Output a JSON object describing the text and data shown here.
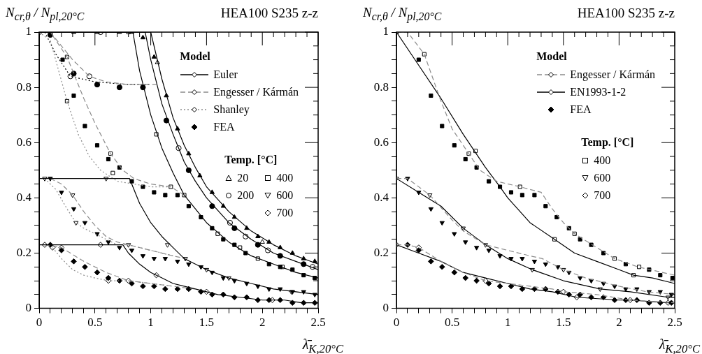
{
  "chart_data": [
    {
      "type": "line",
      "title": "HEA100 S235 z-z",
      "ylabel": "N$_{cr,θ}$ / N$_{pl,20°C}$",
      "xlabel": "λ̄$_{K,20°C}$",
      "legend_title": "Model",
      "annotations": [
        "Temp. [°C]"
      ],
      "legend": "top right",
      "grid": false,
      "xlim": [
        0,
        2.5
      ],
      "ylim": [
        0,
        1
      ],
      "xticks": [
        0,
        {
          "value": 0.1,
          "label": null
        },
        {
          "value": 0.2,
          "label": null
        },
        {
          "value": 0.3,
          "label": null
        },
        {
          "value": 0.4,
          "label": null
        },
        0.5,
        {
          "value": 0.6,
          "label": null
        },
        {
          "value": 0.7,
          "label": null
        },
        {
          "value": 0.8,
          "label": null
        },
        {
          "value": 0.9,
          "label": null
        },
        1,
        {
          "value": 1.1,
          "label": null
        },
        {
          "value": 1.2,
          "label": null
        },
        {
          "value": 1.3,
          "label": null
        },
        {
          "value": 1.4,
          "label": null
        },
        1.5,
        {
          "value": 1.6,
          "label": null
        },
        {
          "value": 1.7,
          "label": null
        },
        {
          "value": 1.8,
          "label": null
        },
        {
          "value": 1.9,
          "label": null
        },
        2,
        {
          "value": 2.1,
          "label": null
        },
        {
          "value": 2.2,
          "label": null
        },
        {
          "value": 2.3,
          "label": null
        },
        {
          "value": 2.4,
          "label": null
        },
        2.5
      ],
      "yticks": [
        0,
        {
          "value": 0.05,
          "label": null
        },
        {
          "value": 0.1,
          "label": null
        },
        {
          "value": 0.15,
          "label": null
        },
        0.2,
        {
          "value": 0.25,
          "label": null
        },
        {
          "value": 0.3,
          "label": null
        },
        {
          "value": 0.35,
          "label": null
        },
        0.4,
        {
          "value": 0.45,
          "label": null
        },
        {
          "value": 0.5,
          "label": null
        },
        {
          "value": 0.55,
          "label": null
        },
        0.6,
        {
          "value": 0.65,
          "label": null
        },
        {
          "value": 0.7,
          "label": null
        },
        {
          "value": 0.75,
          "label": null
        },
        0.8,
        {
          "value": 0.85,
          "label": null
        },
        {
          "value": 0.9,
          "label": null
        },
        {
          "value": 0.95,
          "label": null
        },
        1
      ],
      "series": [
        {
          "name": "Euler",
          "type": "line",
          "color": "#000000",
          "line_style": "solid",
          "x": [
            0,
            1.0,
            1.1,
            1.2,
            1.3,
            1.4,
            1.5,
            1.7,
            1.9,
            2.1,
            2.3,
            2.5
          ],
          "values": [
            1,
            1,
            0.83,
            0.69,
            0.59,
            0.51,
            0.44,
            0.35,
            0.28,
            0.23,
            0.19,
            0.16
          ]
        },
        {
          "type": "line",
          "color": "#000000",
          "line_style": "solid",
          "x": [
            0,
            0.95,
            1.0,
            1.1,
            1.2,
            1.3,
            1.4,
            1.5,
            1.7,
            1.9,
            2.1,
            2.3,
            2.5
          ],
          "values": [
            1,
            1,
            0.9,
            0.74,
            0.63,
            0.53,
            0.46,
            0.4,
            0.31,
            0.25,
            0.2,
            0.17,
            0.14
          ]
        },
        {
          "type": "line",
          "color": "#000000",
          "line_style": "solid",
          "x": [
            0,
            0.84,
            0.9,
            1.0,
            1.1,
            1.2,
            1.3,
            1.4,
            1.5,
            1.7,
            1.9,
            2.1,
            2.3,
            2.5
          ],
          "values": [
            1,
            1,
            0.86,
            0.7,
            0.58,
            0.49,
            0.41,
            0.36,
            0.31,
            0.24,
            0.19,
            0.16,
            0.13,
            0.11
          ]
        },
        {
          "type": "line",
          "color": "#000000",
          "line_style": "solid",
          "x": [
            0,
            0.81,
            0.9,
            1.0,
            1.1,
            1.2,
            1.3,
            1.4,
            1.5,
            1.7,
            1.9,
            2.1,
            2.3,
            2.5
          ],
          "values": [
            0.47,
            0.47,
            0.38,
            0.31,
            0.26,
            0.22,
            0.18,
            0.16,
            0.14,
            0.11,
            0.09,
            0.07,
            0.06,
            0.05
          ]
        },
        {
          "type": "line",
          "color": "#000000",
          "line_style": "solid",
          "x": [
            0,
            0.75,
            0.8,
            0.9,
            1.0,
            1.1,
            1.2,
            1.4,
            1.6,
            1.8,
            2.0,
            2.2,
            2.35,
            2.5
          ],
          "values": [
            0.23,
            0.23,
            0.2,
            0.16,
            0.13,
            0.11,
            0.09,
            0.07,
            0.05,
            0.04,
            0.03,
            0.03,
            0.02,
            0.02
          ]
        },
        {
          "name": "Engesser / Kármán",
          "type": "line",
          "color": "#8c8c8c",
          "line_style": "dashed",
          "x": [
            0,
            0.1,
            0.25,
            0.4,
            0.5,
            0.64,
            0.75,
            0.85,
            1.0,
            1.18,
            1.3
          ],
          "values": [
            1,
            1,
            0.91,
            0.76,
            0.67,
            0.56,
            0.5,
            0.47,
            0.45,
            0.44,
            0.41
          ]
        },
        {
          "type": "line",
          "color": "#8c8c8c",
          "line_style": "dashed",
          "x": [
            0.1,
            0.2,
            0.3,
            0.45,
            0.6,
            0.8,
            1.05
          ],
          "values": [
            1,
            0.95,
            0.9,
            0.84,
            0.82,
            0.81,
            0.81
          ]
        },
        {
          "type": "line",
          "color": "#8c8c8c",
          "line_style": "dashed",
          "x": [
            0.1,
            0.2,
            0.3,
            0.4,
            0.5,
            0.6,
            0.7,
            0.8,
            1.0,
            1.2,
            1.31
          ],
          "values": [
            0.47,
            0.45,
            0.41,
            0.35,
            0.3,
            0.26,
            0.24,
            0.23,
            0.21,
            0.19,
            0.18
          ]
        },
        {
          "type": "line",
          "color": "#8c8c8c",
          "line_style": "dashed",
          "x": [
            0.05,
            0.2,
            0.4,
            0.6,
            0.8,
            1.0,
            1.2,
            1.4
          ],
          "values": [
            0.23,
            0.22,
            0.17,
            0.13,
            0.1,
            0.09,
            0.08,
            0.07
          ]
        },
        {
          "name": "Shanley",
          "type": "line",
          "color": "#8c8c8c",
          "line_style": "dotted",
          "x": [
            0,
            0.1,
            0.25,
            0.35,
            0.45,
            0.55,
            0.7,
            0.85,
            1.0,
            1.18
          ],
          "values": [
            1,
            0.97,
            0.75,
            0.63,
            0.55,
            0.5,
            0.46,
            0.45,
            0.44,
            0.44
          ]
        },
        {
          "type": "line",
          "color": "#000000",
          "line_style": "dotted",
          "x": [
            0.05,
            0.15,
            0.28,
            0.5,
            0.8,
            1.0
          ],
          "values": [
            1,
            0.92,
            0.84,
            0.82,
            0.81,
            0.81
          ]
        },
        {
          "type": "line",
          "color": "#8c8c8c",
          "line_style": "dotted",
          "x": [
            0.05,
            0.15,
            0.25,
            0.33,
            0.4,
            0.5,
            0.6,
            0.7,
            0.8,
            1.0,
            1.2
          ],
          "values": [
            0.47,
            0.43,
            0.36,
            0.31,
            0.29,
            0.27,
            0.25,
            0.23,
            0.23,
            0.21,
            0.19
          ]
        },
        {
          "type": "line",
          "color": "#8c8c8c",
          "line_style": "dotted",
          "x": [
            0.12,
            0.2,
            0.3,
            0.4,
            0.5,
            0.62,
            0.8,
            1.0,
            1.2
          ],
          "values": [
            0.22,
            0.18,
            0.14,
            0.12,
            0.11,
            0.1,
            0.1,
            0.09,
            0.08
          ]
        },
        {
          "type": "scatter",
          "color": "#000000",
          "marker": "triangle",
          "x": [
            0.31,
            0.52,
            0.72,
            0.83,
            0.93,
            1.03,
            1.14,
            1.24,
            1.34,
            1.44,
            1.55,
            1.65,
            1.75,
            1.86,
            1.96,
            2.06,
            2.16,
            2.27,
            2.37,
            2.47
          ],
          "values": [
            1,
            1,
            1,
            1,
            0.98,
            0.91,
            0.77,
            0.65,
            0.56,
            0.48,
            0.42,
            0.37,
            0.33,
            0.29,
            0.26,
            0.24,
            0.22,
            0.2,
            0.18,
            0.17
          ]
        },
        {
          "type": "scatter",
          "color": "#000000",
          "marker": "circle",
          "x": [
            0.1,
            0.31,
            0.52,
            0.72,
            0.93,
            1.14,
            1.34,
            1.55,
            1.75,
            1.96,
            2.16,
            2.37
          ],
          "values": [
            0.99,
            0.85,
            0.81,
            0.8,
            0.8,
            0.68,
            0.5,
            0.37,
            0.29,
            0.23,
            0.19,
            0.16
          ]
        },
        {
          "type": "scatter",
          "color": "#000000",
          "marker": "square",
          "x": [
            0.21,
            0.31,
            0.41,
            0.52,
            0.62,
            0.72,
            0.83,
            0.93,
            1.03,
            1.13,
            1.24,
            1.34,
            1.45,
            1.55,
            1.65,
            1.75,
            1.85,
            2.06,
            2.16,
            2.27,
            2.37,
            2.47
          ],
          "values": [
            0.9,
            0.77,
            0.66,
            0.59,
            0.54,
            0.51,
            0.46,
            0.44,
            0.42,
            0.41,
            0.41,
            0.37,
            0.33,
            0.29,
            0.25,
            0.23,
            0.2,
            0.16,
            0.15,
            0.14,
            0.12,
            0.11
          ]
        },
        {
          "type": "scatter",
          "color": "#000000",
          "marker": "triangle-down",
          "x": [
            0.1,
            0.2,
            0.31,
            0.41,
            0.52,
            0.62,
            0.72,
            0.83,
            0.93,
            1.03,
            1.13,
            1.24,
            1.34,
            1.45,
            1.55,
            1.65,
            1.75,
            1.86,
            1.96,
            2.06,
            2.16,
            2.27,
            2.37,
            2.47
          ],
          "values": [
            0.47,
            0.42,
            0.36,
            0.31,
            0.27,
            0.24,
            0.22,
            0.21,
            0.19,
            0.18,
            0.18,
            0.17,
            0.16,
            0.15,
            0.13,
            0.11,
            0.1,
            0.09,
            0.08,
            0.07,
            0.07,
            0.06,
            0.06,
            0.05
          ]
        },
        {
          "name": "FEA",
          "type": "scatter",
          "color": "#000000",
          "marker": "diamond",
          "x": [
            0.1,
            0.2,
            0.31,
            0.41,
            0.52,
            0.62,
            0.72,
            0.83,
            0.93,
            1.03,
            1.13,
            1.24,
            1.34,
            1.45,
            1.55,
            1.65,
            1.75,
            1.86,
            1.96,
            2.06,
            2.16,
            2.27,
            2.37,
            2.47
          ],
          "values": [
            0.23,
            0.21,
            0.17,
            0.15,
            0.13,
            0.11,
            0.1,
            0.09,
            0.08,
            0.08,
            0.07,
            0.07,
            0.07,
            0.06,
            0.05,
            0.05,
            0.04,
            0.04,
            0.03,
            0.03,
            0.03,
            0.02,
            0.02,
            0.02
          ]
        },
        {
          "name": "20",
          "type": "scatter",
          "color": "#ffffff",
          "marker": "triangle",
          "x": [
            1.06,
            2.0
          ],
          "values": [
            0.89,
            0.24
          ]
        },
        {
          "name": "200",
          "type": "scatter",
          "color": "#ffffff",
          "marker": "circle",
          "x": [
            0,
            0.28,
            0.45,
            0.55,
            1.25,
            1.71,
            1.85,
            2.05,
            2.45
          ],
          "values": [
            1,
            0.84,
            0.84,
            1,
            0.58,
            0.31,
            0.26,
            0.21,
            0.15
          ]
        },
        {
          "name": "400",
          "type": "scatter",
          "color": "#ffffff",
          "marker": "square",
          "x": [
            0.8,
            0.25,
            0.25,
            0.64,
            0.66,
            1.05,
            1.18,
            1.3,
            1.6,
            1.8,
            1.96,
            2.18
          ],
          "values": [
            1,
            0.91,
            0.75,
            0.56,
            0.49,
            0.63,
            0.44,
            0.41,
            0.27,
            0.22,
            0.18,
            0.15
          ]
        },
        {
          "name": "600",
          "type": "scatter",
          "color": "#ffffff",
          "marker": "triangle-down",
          "x": [
            0.05,
            0.3,
            0.33,
            0.6,
            0.8,
            1.15,
            1.31,
            1.5,
            1.7,
            2.26
          ],
          "values": [
            0.47,
            0.41,
            0.31,
            0.47,
            0.23,
            0.23,
            0.18,
            0.14,
            0.11,
            0.06
          ]
        },
        {
          "name": "700",
          "type": "scatter",
          "color": "#ffffff",
          "marker": "diamond",
          "x": [
            0.05,
            0.12,
            0.2,
            0.55,
            0.62,
            0.8,
            1.05,
            1.5,
            2.09
          ],
          "values": [
            0.23,
            0.22,
            0.22,
            0.23,
            0.1,
            0.1,
            0.12,
            0.06,
            0.03
          ]
        }
      ]
    },
    {
      "type": "line",
      "title": "HEA100 S235 z-z",
      "ylabel": "N$_{cr,θ}$ / N$_{pl,20°C}$",
      "xlabel": "λ̄$_{K,20°C}$",
      "legend_title": "Model",
      "annotations": [
        "Temp. [°C]"
      ],
      "legend": "top right",
      "grid": false,
      "xlim": [
        0,
        2.5
      ],
      "ylim": [
        0,
        1
      ],
      "xticks": [
        0,
        {
          "value": 0.1,
          "label": null
        },
        {
          "value": 0.2,
          "label": null
        },
        {
          "value": 0.3,
          "label": null
        },
        {
          "value": 0.4,
          "label": null
        },
        0.5,
        {
          "value": 0.6,
          "label": null
        },
        {
          "value": 0.7,
          "label": null
        },
        {
          "value": 0.8,
          "label": null
        },
        {
          "value": 0.9,
          "label": null
        },
        1,
        {
          "value": 1.1,
          "label": null
        },
        {
          "value": 1.2,
          "label": null
        },
        {
          "value": 1.3,
          "label": null
        },
        {
          "value": 1.4,
          "label": null
        },
        1.5,
        {
          "value": 1.6,
          "label": null
        },
        {
          "value": 1.7,
          "label": null
        },
        {
          "value": 1.8,
          "label": null
        },
        {
          "value": 1.9,
          "label": null
        },
        2,
        {
          "value": 2.1,
          "label": null
        },
        {
          "value": 2.2,
          "label": null
        },
        {
          "value": 2.3,
          "label": null
        },
        {
          "value": 2.4,
          "label": null
        },
        2.5
      ],
      "yticks": [
        0,
        {
          "value": 0.05,
          "label": null
        },
        {
          "value": 0.1,
          "label": null
        },
        {
          "value": 0.15,
          "label": null
        },
        0.2,
        {
          "value": 0.25,
          "label": null
        },
        {
          "value": 0.3,
          "label": null
        },
        {
          "value": 0.35,
          "label": null
        },
        0.4,
        {
          "value": 0.45,
          "label": null
        },
        {
          "value": 0.5,
          "label": null
        },
        {
          "value": 0.55,
          "label": null
        },
        0.6,
        {
          "value": 0.65,
          "label": null
        },
        {
          "value": 0.7,
          "label": null
        },
        {
          "value": 0.75,
          "label": null
        },
        0.8,
        {
          "value": 0.85,
          "label": null
        },
        {
          "value": 0.9,
          "label": null
        },
        {
          "value": 0.95,
          "label": null
        },
        1
      ],
      "series": [
        {
          "name": "Engesser / Kármán",
          "type": "line",
          "color": "#8c8c8c",
          "line_style": "dashed",
          "x": [
            0,
            0.1,
            0.25,
            0.4,
            0.5,
            0.65,
            0.75,
            0.9,
            1.11,
            1.3,
            1.4,
            1.5,
            1.6,
            1.8,
            1.96,
            2.17,
            2.5
          ],
          "values": [
            1,
            1,
            0.92,
            0.75,
            0.65,
            0.56,
            0.5,
            0.46,
            0.44,
            0.42,
            0.36,
            0.31,
            0.27,
            0.22,
            0.18,
            0.15,
            0.12
          ]
        },
        {
          "type": "line",
          "color": "#8c8c8c",
          "line_style": "dashed",
          "x": [
            0,
            0.1,
            0.3,
            0.5,
            0.6,
            0.8,
            1.0,
            1.2,
            1.31,
            1.5,
            1.7,
            2.0,
            2.25,
            2.5
          ],
          "values": [
            0.47,
            0.47,
            0.41,
            0.32,
            0.28,
            0.23,
            0.21,
            0.19,
            0.18,
            0.14,
            0.11,
            0.08,
            0.06,
            0.05
          ]
        },
        {
          "type": "line",
          "color": "#8c8c8c",
          "line_style": "dashed",
          "x": [
            0,
            0.1,
            0.2,
            0.4,
            0.6,
            0.8,
            1.0,
            1.2,
            1.4,
            1.5,
            1.8,
            2.1,
            2.5
          ],
          "values": [
            0.23,
            0.23,
            0.22,
            0.17,
            0.13,
            0.1,
            0.09,
            0.08,
            0.07,
            0.06,
            0.05,
            0.03,
            0.02
          ]
        },
        {
          "name": "EN1993-1-2",
          "type": "line",
          "color": "#000000",
          "line_style": "solid",
          "x": [
            0,
            0.2,
            0.4,
            0.6,
            0.8,
            0.93,
            1.0,
            1.2,
            1.42,
            1.6,
            1.8,
            2.0,
            2.13,
            2.3,
            2.5
          ],
          "values": [
            1,
            0.88,
            0.76,
            0.63,
            0.51,
            0.44,
            0.4,
            0.31,
            0.25,
            0.2,
            0.17,
            0.14,
            0.12,
            0.11,
            0.09
          ]
        },
        {
          "type": "line",
          "color": "#000000",
          "line_style": "solid",
          "x": [
            0,
            0.2,
            0.4,
            0.6,
            0.8,
            1.0,
            1.22,
            1.5,
            1.83,
            2.1,
            2.44,
            2.5
          ],
          "values": [
            0.47,
            0.42,
            0.37,
            0.29,
            0.23,
            0.18,
            0.14,
            0.1,
            0.07,
            0.06,
            0.04,
            0.04
          ]
        },
        {
          "type": "line",
          "color": "#000000",
          "line_style": "solid",
          "x": [
            0,
            0.2,
            0.4,
            0.6,
            0.8,
            1.0,
            1.2,
            1.4,
            1.62,
            2.0,
            2.1,
            2.44,
            2.5
          ],
          "values": [
            0.23,
            0.2,
            0.17,
            0.13,
            0.11,
            0.09,
            0.07,
            0.06,
            0.04,
            0.03,
            0.03,
            0.02,
            0.02
          ]
        },
        {
          "type": "scatter",
          "color": "#000000",
          "marker": "square",
          "x": [
            0.2,
            0.31,
            0.41,
            0.52,
            0.62,
            0.72,
            0.83,
            0.93,
            1.03,
            1.13,
            1.24,
            1.34,
            1.44,
            1.55,
            1.65,
            1.75,
            1.86,
            2.06,
            2.27,
            2.37,
            2.48
          ],
          "values": [
            0.9,
            0.77,
            0.66,
            0.59,
            0.54,
            0.51,
            0.46,
            0.44,
            0.42,
            0.41,
            0.41,
            0.37,
            0.33,
            0.29,
            0.25,
            0.23,
            0.2,
            0.16,
            0.14,
            0.12,
            0.11
          ]
        },
        {
          "type": "scatter",
          "color": "#000000",
          "marker": "triangle-down",
          "x": [
            0.1,
            0.2,
            0.31,
            0.41,
            0.52,
            0.62,
            0.72,
            0.83,
            0.93,
            1.03,
            1.13,
            1.24,
            1.34,
            1.45,
            1.55,
            1.65,
            1.75,
            1.86,
            1.96,
            2.06,
            2.16,
            2.27,
            2.37,
            2.47
          ],
          "values": [
            0.47,
            0.42,
            0.36,
            0.31,
            0.27,
            0.24,
            0.22,
            0.21,
            0.19,
            0.18,
            0.18,
            0.17,
            0.16,
            0.15,
            0.13,
            0.11,
            0.1,
            0.09,
            0.08,
            0.07,
            0.07,
            0.06,
            0.06,
            0.05
          ]
        },
        {
          "name": "FEA",
          "type": "scatter",
          "color": "#000000",
          "marker": "diamond",
          "x": [
            0.1,
            0.2,
            0.31,
            0.41,
            0.52,
            0.62,
            0.72,
            0.83,
            0.93,
            1.03,
            1.13,
            1.24,
            1.34,
            1.45,
            1.55,
            1.65,
            1.75,
            1.86,
            1.96,
            2.06,
            2.16,
            2.27,
            2.37,
            2.47
          ],
          "values": [
            0.23,
            0.21,
            0.17,
            0.15,
            0.13,
            0.11,
            0.1,
            0.09,
            0.08,
            0.08,
            0.07,
            0.07,
            0.07,
            0.06,
            0.05,
            0.05,
            0.04,
            0.04,
            0.03,
            0.03,
            0.03,
            0.02,
            0.02,
            0.02
          ]
        },
        {
          "name": "400",
          "type": "scatter",
          "color": "#ffffff",
          "marker": "square",
          "x": [
            0,
            0.25,
            0.65,
            0.71,
            1.11,
            1.42,
            1.6,
            1.96,
            2.13,
            2.18
          ],
          "values": [
            1,
            0.92,
            0.56,
            0.57,
            0.44,
            0.25,
            0.27,
            0.18,
            0.12,
            0.15
          ]
        },
        {
          "name": "600",
          "type": "scatter",
          "color": "#ffffff",
          "marker": "triangle-down",
          "x": [
            0,
            0.3,
            0.6,
            0.8,
            1.22,
            1.5,
            1.83,
            2.44
          ],
          "values": [
            0.47,
            0.41,
            0.29,
            0.23,
            0.14,
            0.14,
            0.07,
            0.04
          ]
        },
        {
          "name": "700",
          "type": "scatter",
          "color": "#ffffff",
          "marker": "diamond",
          "x": [
            0,
            0.2,
            0.8,
            1.5,
            1.62,
            2.1,
            2.44
          ],
          "values": [
            0.23,
            0.22,
            0.1,
            0.06,
            0.04,
            0.03,
            0.02
          ]
        }
      ]
    }
  ]
}
